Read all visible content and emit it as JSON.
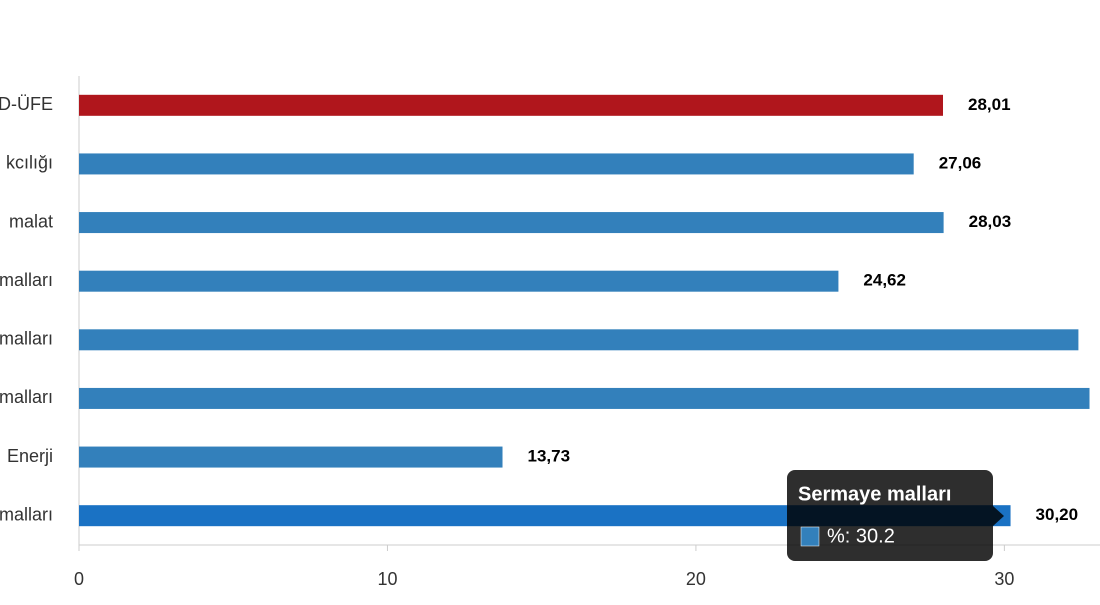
{
  "chart_data": {
    "type": "hbar",
    "categories": [
      "D-ÜFE",
      "kcılığı",
      "malat",
      "malları",
      "malları",
      "malları",
      "Enerji",
      "malları"
    ],
    "values": [
      28.01,
      27.06,
      28.03,
      24.62,
      32.4,
      32.76,
      13.73,
      30.2
    ],
    "value_labels": [
      "28,01",
      "27,06",
      "28,03",
      "24,62",
      null,
      null,
      "13,73",
      "30,20"
    ],
    "colors": [
      "#b0161c",
      "#3380bb",
      "#3380bb",
      "#3380bb",
      "#3380bb",
      "#3380bb",
      "#3380bb",
      "#1a72c4"
    ],
    "xlim": [
      0,
      33.1
    ],
    "xticks": [
      0,
      10,
      20,
      30
    ],
    "tooltip": {
      "title": "Sermaye malları",
      "text": "%: 30.2",
      "color": "#3380bb"
    }
  }
}
